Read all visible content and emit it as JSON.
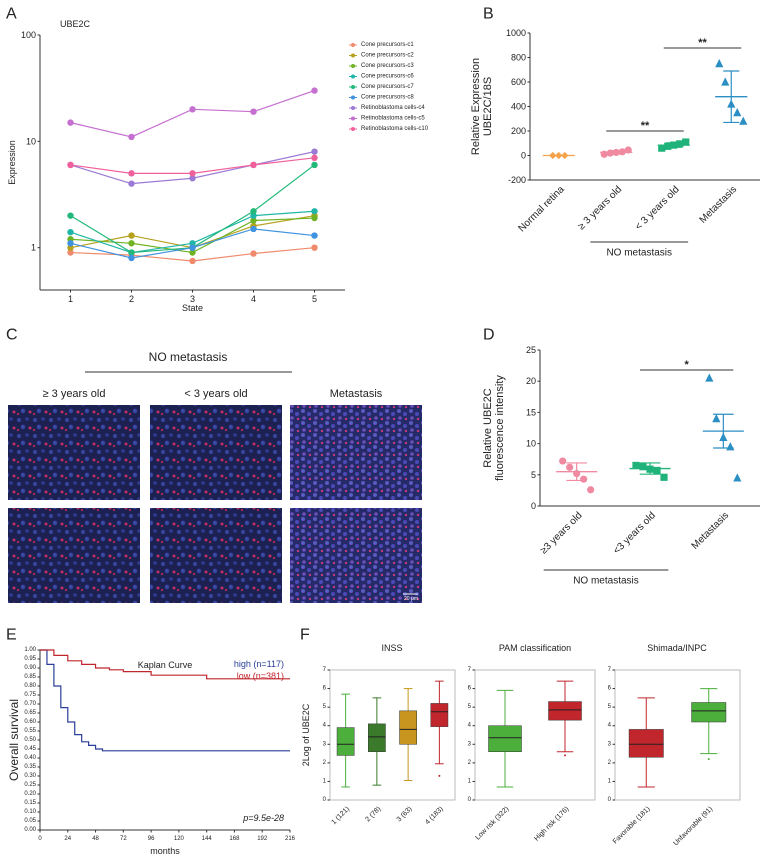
{
  "chart_data": [
    {
      "panel": "A",
      "type": "line",
      "title": "UBE2C",
      "x_label": "State",
      "y_label": "Expression",
      "x": [
        1,
        2,
        3,
        4,
        5
      ],
      "xlim": [
        0.5,
        5.5
      ],
      "xticks": [
        1,
        2,
        3,
        4,
        5
      ],
      "ylim": [
        0.4,
        100
      ],
      "yticks": [
        1,
        10,
        100
      ],
      "y_scale": "log",
      "legend": "right",
      "series": [
        {
          "name": "Cone precursors-c1",
          "color": "#f08a6c",
          "values": [
            0.9,
            0.85,
            0.75,
            0.88,
            1.0
          ]
        },
        {
          "name": "Cone precursors-c2",
          "color": "#b5a11c",
          "values": [
            1.0,
            1.3,
            1.0,
            1.6,
            2.0
          ]
        },
        {
          "name": "Cone precursors-c3",
          "color": "#6fb323",
          "values": [
            1.2,
            1.1,
            0.9,
            1.8,
            1.9
          ]
        },
        {
          "name": "Cone precursors-c6",
          "color": "#1fb5a8",
          "values": [
            1.4,
            0.9,
            1.1,
            2.0,
            2.2
          ]
        },
        {
          "name": "Cone precursors-c7",
          "color": "#22b87a",
          "values": [
            2.0,
            0.9,
            1.0,
            2.2,
            6.0
          ]
        },
        {
          "name": "Cone precursors-c8",
          "color": "#3f93e0",
          "values": [
            1.1,
            0.8,
            1.0,
            1.5,
            1.3
          ]
        },
        {
          "name": "Retinoblastoma cells-c4",
          "color": "#9b7ad6",
          "values": [
            6.0,
            4.0,
            4.5,
            6.0,
            8.0
          ]
        },
        {
          "name": "Retinoblastoma cells-c5",
          "color": "#c56fd0",
          "values": [
            15,
            11,
            20,
            19,
            30
          ]
        },
        {
          "name": "Retinoblastoma cells-c10",
          "color": "#f0609a",
          "values": [
            6.0,
            5.0,
            5.0,
            6.0,
            7.0
          ]
        }
      ]
    },
    {
      "panel": "B",
      "type": "dotplot",
      "y_label": [
        "Relative Expression",
        "UBE2C/18S"
      ],
      "categories": [
        "Normal retina",
        "≥ 3 years old",
        "< 3 years old",
        "Metastasis"
      ],
      "values": [
        [
          0,
          0,
          0
        ],
        [
          10,
          20,
          25,
          30,
          45
        ],
        [
          60,
          75,
          85,
          95,
          110
        ],
        [
          750,
          600,
          420,
          350,
          280
        ]
      ],
      "means": [
        0,
        26,
        85,
        480
      ],
      "errors": [
        3,
        14,
        18,
        210
      ],
      "colors": [
        "#f5a24a",
        "#f08aa0",
        "#1fb37a",
        "#2c8fc4"
      ],
      "markers": [
        "diamond",
        "circle",
        "square",
        "triangle"
      ],
      "ylim": [
        -200,
        1000
      ],
      "yticks": [
        -200,
        0,
        200,
        400,
        600,
        800,
        1000
      ],
      "group_label": "NO metastasis",
      "significance": [
        "**",
        "**"
      ]
    },
    {
      "panel": "D",
      "type": "dotplot",
      "y_label": [
        "Relative UBE2C",
        "fluorescence intensity"
      ],
      "categories": [
        "≥3 years old",
        "<3 years old",
        "Metastasis"
      ],
      "values": [
        [
          7.2,
          6.2,
          5.2,
          4.3,
          2.6
        ],
        [
          6.5,
          6.3,
          5.9,
          5.7,
          4.6
        ],
        [
          20.5,
          14,
          11,
          9.5,
          4.5
        ]
      ],
      "means": [
        5.5,
        6.0,
        12.0
      ],
      "errors": [
        1.4,
        0.9,
        2.7
      ],
      "colors": [
        "#f08aa0",
        "#1fb37a",
        "#2c8fc4"
      ],
      "markers": [
        "circle",
        "square",
        "triangle"
      ],
      "ylim": [
        0,
        25
      ],
      "yticks": [
        0,
        5,
        10,
        15,
        20,
        25
      ],
      "group_label": "NO metastasis",
      "significance": [
        "*"
      ]
    },
    {
      "panel": "E",
      "type": "step",
      "title": "Kaplan Curve",
      "x_label": "months",
      "y_label": "Overall survival",
      "xlim": [
        0,
        216
      ],
      "xticks": [
        0,
        24,
        48,
        72,
        96,
        120,
        144,
        168,
        192,
        216
      ],
      "ylim": [
        0,
        1
      ],
      "yticks": [
        {
          "value": 0,
          "label": "0.00"
        },
        {
          "value": 0.05,
          "label": "0.05"
        },
        {
          "value": 0.1,
          "label": "0.10"
        },
        {
          "value": 0.15,
          "label": "0.15"
        },
        {
          "value": 0.2,
          "label": "0.20"
        },
        {
          "value": 0.25,
          "label": "0.25"
        },
        {
          "value": 0.3,
          "label": "0.30"
        },
        {
          "value": 0.35,
          "label": "0.35"
        },
        {
          "value": 0.4,
          "label": "0.40"
        },
        {
          "value": 0.45,
          "label": "0.45"
        },
        {
          "value": 0.5,
          "label": "0.50"
        },
        {
          "value": 0.55,
          "label": "0.55"
        },
        {
          "value": 0.6,
          "label": "0.60"
        },
        {
          "value": 0.65,
          "label": "0.65"
        },
        {
          "value": 0.7,
          "label": "0.70"
        },
        {
          "value": 0.75,
          "label": "0.75"
        },
        {
          "value": 0.8,
          "label": "0.80"
        },
        {
          "value": 0.85,
          "label": "0.85"
        },
        {
          "value": 0.9,
          "label": "0.90"
        },
        {
          "value": 0.95,
          "label": "0.95"
        },
        {
          "value": 1,
          "label": "1.00"
        }
      ],
      "annotation": "p=9.5e-28",
      "legend": "upper right",
      "series": [
        {
          "name": "high (n=117)",
          "color": "#2a3f9a",
          "x": [
            0,
            6,
            12,
            18,
            24,
            30,
            36,
            42,
            48,
            54,
            60,
            216
          ],
          "values": [
            1.0,
            0.92,
            0.8,
            0.68,
            0.6,
            0.53,
            0.49,
            0.47,
            0.45,
            0.44,
            0.44,
            0.44
          ]
        },
        {
          "name": "low (n=381)",
          "color": "#c0262c",
          "x": [
            0,
            12,
            24,
            36,
            48,
            60,
            72,
            96,
            120,
            144,
            168,
            216
          ],
          "values": [
            1.0,
            0.97,
            0.94,
            0.92,
            0.9,
            0.89,
            0.88,
            0.86,
            0.86,
            0.84,
            0.84,
            0.84
          ]
        }
      ]
    },
    {
      "panel": "F",
      "type": "box",
      "title": "INSS",
      "y_label": "2Log of UBE2C",
      "categories": [
        "1 (121)",
        "2 (78)",
        "3 (63)",
        "4 (183)"
      ],
      "min": [
        0.7,
        0.8,
        1.05,
        1.95
      ],
      "q1": [
        2.4,
        2.6,
        3.0,
        3.95
      ],
      "median": [
        3.0,
        3.4,
        3.8,
        4.75
      ],
      "q3": [
        3.9,
        4.1,
        4.8,
        5.2
      ],
      "max": [
        5.7,
        5.5,
        6.0,
        6.4
      ],
      "colors": [
        "#4caf3c",
        "#3a7a2a",
        "#c8961e",
        "#c0262c"
      ],
      "outliers": [
        [],
        [],
        [],
        [
          1.3
        ]
      ],
      "ylim": [
        0,
        7
      ],
      "yticks": [
        0,
        1,
        2,
        3,
        4,
        5,
        6,
        7
      ]
    },
    {
      "type": "box",
      "title": "PAM classification",
      "categories": [
        "Low risk (322)",
        "High risk (176)"
      ],
      "min": [
        0.7,
        2.6
      ],
      "q1": [
        2.6,
        4.3
      ],
      "median": [
        3.35,
        4.85
      ],
      "q3": [
        4.0,
        5.3
      ],
      "max": [
        5.9,
        6.4
      ],
      "colors": [
        "#4caf3c",
        "#c0262c"
      ],
      "outliers": [
        [],
        [
          2.4
        ]
      ],
      "ylim": [
        0,
        7
      ],
      "yticks": [
        0,
        1,
        2,
        3,
        4,
        5,
        6,
        7
      ]
    },
    {
      "type": "box",
      "title": "Shimada/INPC",
      "categories": [
        "Favorable (181)",
        "Unfavorable (91)"
      ],
      "min": [
        0.7,
        2.5
      ],
      "q1": [
        2.3,
        4.2
      ],
      "median": [
        3.0,
        4.8
      ],
      "q3": [
        3.8,
        5.25
      ],
      "max": [
        5.5,
        6.0
      ],
      "colors": [
        "#c0262c",
        "#4caf3c"
      ],
      "outliers": [
        [],
        [
          2.2
        ]
      ],
      "ylim": [
        0,
        7
      ],
      "yticks": [
        0,
        1,
        2,
        3,
        4,
        5,
        6,
        7
      ]
    }
  ],
  "figure_c": {
    "panel": "C",
    "group_label": "NO metastasis",
    "columns": [
      "≥ 3 years old",
      "< 3 years old",
      "Metastasis"
    ],
    "scale_bar": "20 μm"
  }
}
